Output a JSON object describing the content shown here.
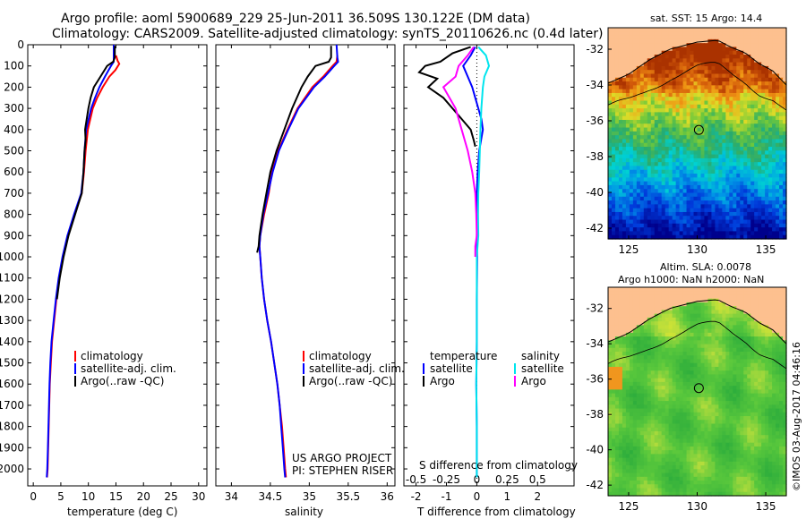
{
  "header": {
    "line1": "Argo profile: aoml 5900689_229 25-Jun-2011 36.509S 130.122E (DM data)",
    "line2": "Climatology: CARS2009. Satellite-adjusted climatology: synTS_20110626.nc (0.4d later)"
  },
  "colors": {
    "climatology": "#ff0000",
    "satellite": "#0000ff",
    "argo": "#000000",
    "sat_salinity": "#00e5ee",
    "argo_salinity": "#ff00ff",
    "land": "#fdc08f"
  },
  "chart_data": [
    {
      "type": "line",
      "id": "temperature",
      "xlabel": "temperature (deg C)",
      "ylabel": "",
      "xlim": [
        -1,
        31.5
      ],
      "ylim": [
        2080,
        0
      ],
      "xticks": [
        "0",
        "5",
        "10",
        "15",
        "20",
        "25",
        "30"
      ],
      "yticks": [
        "0",
        "100",
        "200",
        "300",
        "400",
        "500",
        "600",
        "700",
        "800",
        "900",
        "1000",
        "1100",
        "1200",
        "1300",
        "1400",
        "1500",
        "1600",
        "1700",
        "1800",
        "1900",
        "2000"
      ],
      "legend": [
        "climatology",
        "satellite-adj. clim.",
        "Argo(..raw -QC)"
      ],
      "series": [
        {
          "name": "climatology",
          "y": [
            50,
            75,
            90,
            120,
            150,
            200,
            250,
            300,
            400,
            500,
            600,
            700,
            800,
            900,
            1000,
            1100,
            1200,
            1300,
            1400,
            1500,
            1600,
            1700,
            1800,
            1900,
            2000,
            2040
          ],
          "x": [
            15.0,
            15.3,
            15.6,
            14.9,
            13.8,
            12.6,
            11.6,
            10.8,
            9.9,
            9.5,
            9.2,
            8.8,
            7.5,
            6.3,
            5.4,
            4.7,
            4.2,
            3.8,
            3.4,
            3.2,
            3.0,
            2.9,
            2.8,
            2.7,
            2.6,
            2.5
          ]
        },
        {
          "name": "satellite-adj. clim.",
          "y": [
            0,
            60,
            80,
            100,
            150,
            200,
            250,
            300,
            400,
            500,
            600,
            700,
            800,
            900,
            1000,
            1100,
            1200,
            1300,
            1400,
            1500,
            1600,
            1700,
            1800,
            1900,
            2000,
            2040
          ],
          "x": [
            14.6,
            14.6,
            14.6,
            14.1,
            13.0,
            12.0,
            11.2,
            10.5,
            9.6,
            9.3,
            9.1,
            8.7,
            7.4,
            6.2,
            5.3,
            4.6,
            4.1,
            3.7,
            3.3,
            3.1,
            2.95,
            2.85,
            2.75,
            2.65,
            2.55,
            2.45
          ]
        },
        {
          "name": "Argo(..raw -QC)",
          "y": [
            5,
            60,
            80,
            100,
            150,
            200,
            250,
            300,
            400,
            450,
            500,
            600,
            700,
            800,
            900,
            1000,
            1100,
            1200
          ],
          "x": [
            14.8,
            14.8,
            14.5,
            13.4,
            12.2,
            11.0,
            10.4,
            10.0,
            9.4,
            9.5,
            9.3,
            9.1,
            8.8,
            7.6,
            6.4,
            5.5,
            4.8,
            4.3
          ]
        }
      ]
    },
    {
      "type": "line",
      "id": "salinity",
      "xlabel": "salinity",
      "ylabel": "",
      "xlim": [
        33.8,
        36.1
      ],
      "ylim": [
        2080,
        0
      ],
      "xticks": [
        "34",
        "34.5",
        "35",
        "35.5",
        "36"
      ],
      "legend": [
        "climatology",
        "satellite-adj. clim.",
        "Argo(..raw -QC)"
      ],
      "annotation": [
        "US ARGO PROJECT",
        "PI: STEPHEN RISER"
      ],
      "series": [
        {
          "name": "climatology",
          "y": [
            50,
            80,
            100,
            150,
            200,
            300,
            400,
            500,
            600,
            700,
            800,
            900,
            950,
            1000,
            1100,
            1200,
            1300,
            1400,
            1500,
            1600,
            1700,
            1800,
            1900,
            2000,
            2040
          ],
          "x": [
            35.36,
            35.35,
            35.3,
            35.18,
            35.04,
            34.85,
            34.72,
            34.6,
            34.52,
            34.48,
            34.42,
            34.37,
            34.36,
            34.37,
            34.39,
            34.42,
            34.46,
            34.51,
            34.55,
            34.59,
            34.62,
            34.65,
            34.67,
            34.69,
            34.7
          ]
        },
        {
          "name": "satellite-adj. clim.",
          "y": [
            0,
            60,
            80,
            100,
            150,
            200,
            300,
            400,
            500,
            600,
            700,
            800,
            900,
            950,
            1000,
            1100,
            1200,
            1300,
            1400,
            1500,
            1600,
            1700,
            1800,
            1900,
            2000,
            2040
          ],
          "x": [
            35.35,
            35.36,
            35.37,
            35.32,
            35.2,
            35.06,
            34.86,
            34.73,
            34.61,
            34.53,
            34.47,
            34.41,
            34.37,
            34.36,
            34.37,
            34.39,
            34.42,
            34.46,
            34.51,
            34.55,
            34.59,
            34.62,
            34.64,
            34.66,
            34.68,
            34.69
          ]
        },
        {
          "name": "Argo(..raw -QC)",
          "y": [
            5,
            60,
            80,
            100,
            150,
            200,
            300,
            400,
            500,
            600,
            700,
            800,
            900,
            950,
            980
          ],
          "x": [
            35.28,
            35.28,
            35.25,
            35.08,
            34.98,
            34.9,
            34.78,
            34.68,
            34.58,
            34.5,
            34.45,
            34.4,
            34.36,
            34.35,
            34.33
          ]
        }
      ]
    },
    {
      "type": "line",
      "id": "difference",
      "xlabel": "T difference from climatology",
      "secondary_xlabel": "S difference from climatology",
      "ylabel": "",
      "xlim": [
        -2.4,
        3.2
      ],
      "ylim": [
        2080,
        0
      ],
      "xticks": [
        "-2",
        "-1",
        "0",
        "1",
        "2"
      ],
      "secondary_xticks": [
        "-0.5",
        "-0.25",
        "0",
        "0.25",
        "0.5"
      ],
      "legend_left_title": "temperature",
      "legend_right_title": "salinity",
      "legend": [
        "satellite",
        "Argo",
        "satellite",
        "Argo"
      ],
      "series": [
        {
          "name": "temperature satellite",
          "y": [
            10,
            50,
            100,
            150,
            200,
            250,
            300,
            350,
            400,
            500,
            600,
            700,
            800,
            900,
            1000,
            1200,
            1400,
            1600,
            1800,
            2000,
            2040
          ],
          "x": [
            -0.05,
            -0.2,
            -0.45,
            -0.3,
            -0.15,
            -0.05,
            0.05,
            0.15,
            0.2,
            0.08,
            0.03,
            0.0,
            0.02,
            0.0,
            0.01,
            0.0,
            0.0,
            -0.02,
            0.0,
            0.0,
            0.0
          ]
        },
        {
          "name": "temperature Argo",
          "y": [
            10,
            40,
            80,
            100,
            130,
            160,
            200,
            250,
            300,
            350,
            400,
            450,
            480
          ],
          "x": [
            -0.2,
            -0.8,
            -1.2,
            -1.7,
            -1.9,
            -1.3,
            -1.6,
            -1.1,
            -0.8,
            -0.5,
            -0.2,
            -0.1,
            -0.05
          ]
        },
        {
          "name": "salinity satellite",
          "y": [
            10,
            50,
            100,
            150,
            200,
            300,
            400,
            500,
            600,
            700,
            800,
            900,
            1000,
            1200,
            1400,
            1600,
            1800,
            2000,
            2040
          ],
          "x": [
            0.05,
            0.3,
            0.4,
            0.25,
            0.2,
            0.15,
            0.12,
            0.1,
            0.08,
            0.05,
            0.04,
            0.05,
            0.0,
            0.0,
            0.0,
            -0.02,
            0.0,
            0.0,
            0.0
          ]
        },
        {
          "name": "salinity Argo",
          "y": [
            10,
            50,
            100,
            150,
            200,
            250,
            300,
            400,
            500,
            600,
            700,
            800,
            900,
            950,
            1000
          ],
          "x": [
            -0.1,
            -0.3,
            -0.6,
            -0.7,
            -1.1,
            -0.9,
            -0.7,
            -0.5,
            -0.3,
            -0.15,
            -0.05,
            -0.02,
            0.0,
            -0.05,
            -0.05
          ]
        }
      ]
    },
    {
      "type": "heatmap",
      "id": "sst-map",
      "title": "sat. SST: 15 Argo: 14.4",
      "xticks": [
        "125",
        "130",
        "135"
      ],
      "yticks": [
        "-32",
        "-34",
        "-36",
        "-38",
        "-40",
        "-42"
      ],
      "xlim": [
        123.5,
        136.5
      ],
      "ylim": [
        -42.6,
        -30.8
      ],
      "float_position": [
        130.122,
        -36.509
      ]
    },
    {
      "type": "heatmap",
      "id": "sla-map",
      "title": "Altim. SLA: 0.0078",
      "subtitle": "Argo h1000: NaN h2000: NaN",
      "xticks": [
        "125",
        "130",
        "135"
      ],
      "yticks": [
        "-32",
        "-34",
        "-36",
        "-38",
        "-40",
        "-42"
      ],
      "xlim": [
        123.5,
        136.5
      ],
      "ylim": [
        -42.6,
        -30.8
      ],
      "float_position": [
        130.122,
        -36.509
      ]
    }
  ],
  "footer": {
    "stamp": "©IMOS 03-Aug-2017 04:46:16"
  }
}
